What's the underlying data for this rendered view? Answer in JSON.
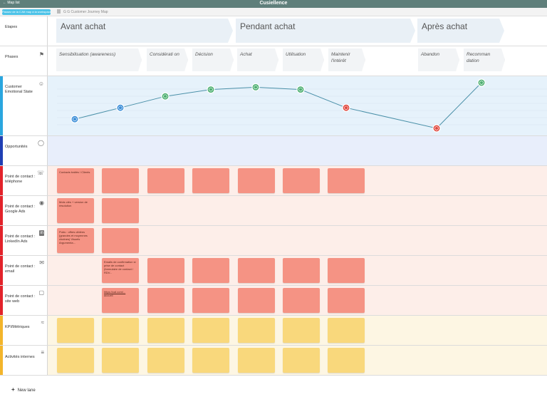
{
  "app": {
    "back_label": "Map list",
    "title": "Cusiellence",
    "workspace_button": "Passez de la CJM map à la workspace",
    "doc_title": "G G Customer Journey Map"
  },
  "lanes": {
    "etapes": "Etapes",
    "phases": "Phases",
    "emotion": "Customer Emotional State",
    "opportunities": "Opportunités",
    "telephone": "Point de contact : téléphone",
    "google": "Point de contact : Google Ads",
    "linkedin": "Point de contact : LinkedIn Ads",
    "email": "Point de contact : email",
    "site": "Point de contact : site web",
    "kpi": "KPI/Métriques",
    "activites": "Activités internes"
  },
  "stages": [
    "Avant achat",
    "Pendant achat",
    "Après achat"
  ],
  "phases": [
    "Sensibilisation (awareness)",
    "Considérati on",
    "Décision",
    "Achat",
    "Utilisation",
    "Maintenir l'intérêt",
    "Abandon",
    "Recomman dation"
  ],
  "emotion_levels": [
    0.2,
    0.45,
    0.7,
    0.85,
    0.9,
    0.85,
    0.45,
    0.0,
    1.0
  ],
  "cards": {
    "tel_1": "Contacts traités / Clients",
    "google_1": "Mots clés + version de résolution",
    "linkedin_1": "Pubs : offres ciblées (grandes et moyennes chaînes) Visuels Argumenta...",
    "email_2": "Emails de confirmation si prise de contact (formulaire de contact / RDV...",
    "site_2_link": "https://cal.com/...",
    "site_2_text": "accueil"
  },
  "new_lane": "New lane",
  "colors": {
    "stage": "#e9f0f6",
    "touchpoint_card": "#f59384",
    "kpi_card": "#f9d87c",
    "emotion_line": "#4a90a8",
    "positive": "#4caf70",
    "negative": "#e0483e",
    "neutral": "#3b8ed8"
  }
}
